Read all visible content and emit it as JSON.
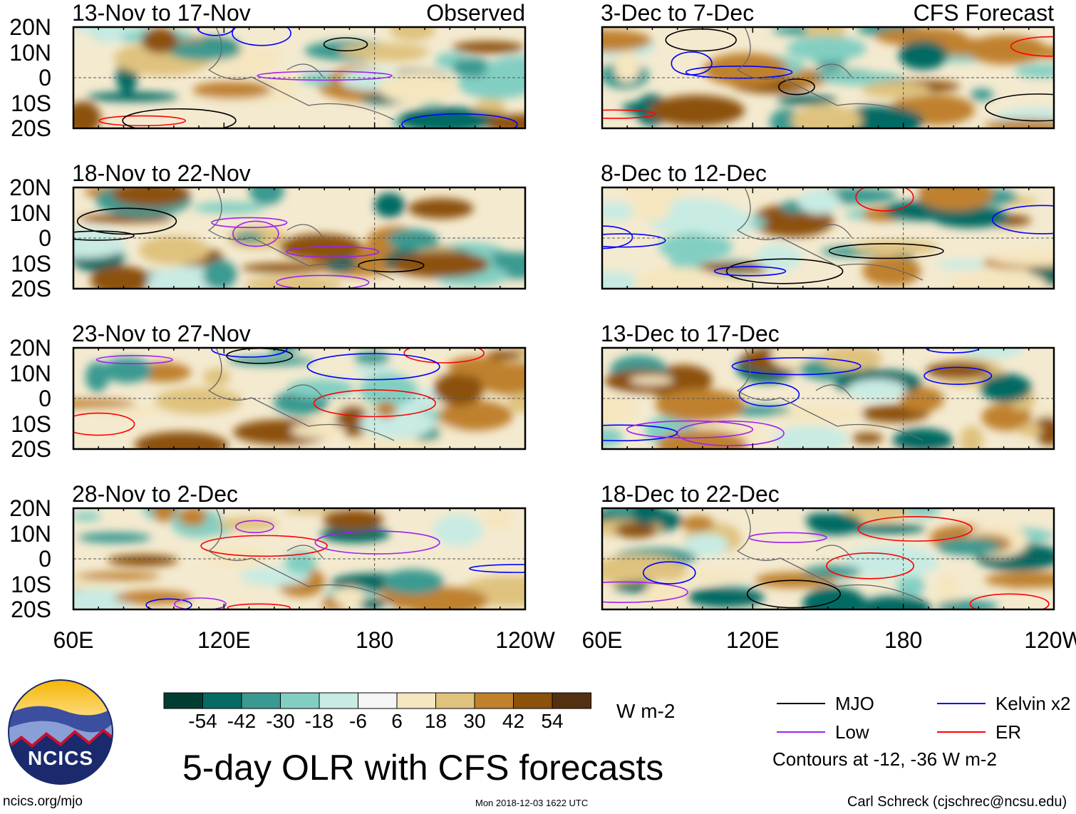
{
  "chart_data": {
    "type": "heatmap",
    "title": "5-day OLR with CFS forecasts",
    "units": "W m-2",
    "lat_ticks": [
      "20N",
      "10N",
      "0",
      "10S",
      "20S"
    ],
    "lon_ticks": [
      "60E",
      "120E",
      "180",
      "120W"
    ],
    "columns": [
      {
        "label": "Observed",
        "panels": [
          "13-Nov to 17-Nov",
          "18-Nov to 22-Nov",
          "23-Nov to 27-Nov",
          "28-Nov to 2-Dec"
        ]
      },
      {
        "label": "CFS Forecast",
        "panels": [
          "3-Dec to 7-Dec",
          "8-Dec to 12-Dec",
          "13-Dec to 17-Dec",
          "18-Dec to 22-Dec"
        ]
      }
    ],
    "colorbar": {
      "levels": [
        "-54",
        "-42",
        "-30",
        "-18",
        "-6",
        "6",
        "18",
        "30",
        "42",
        "54"
      ],
      "colors": [
        "#023d33",
        "#066b64",
        "#3a9a91",
        "#82cfc2",
        "#c8ebe3",
        "#f5f5f5",
        "#f5e6c0",
        "#dfc27e",
        "#bf812e",
        "#8c510b",
        "#553010"
      ]
    },
    "contours": {
      "levels_text": "Contours at -12, -36 W m-2",
      "series": [
        {
          "name": "MJO",
          "color": "#000000"
        },
        {
          "name": "Kelvin x2",
          "color": "#0000ff"
        },
        {
          "name": "Low",
          "color": "#a020f0"
        },
        {
          "name": "ER",
          "color": "#ff0000"
        }
      ]
    }
  },
  "footer": {
    "logo_text": "NCICS",
    "url": "ncics.org/mjo",
    "timestamp": "Mon 2018-12-03 1622 UTC",
    "credit": "Carl Schreck (cjschrec@ncsu.edu)"
  }
}
